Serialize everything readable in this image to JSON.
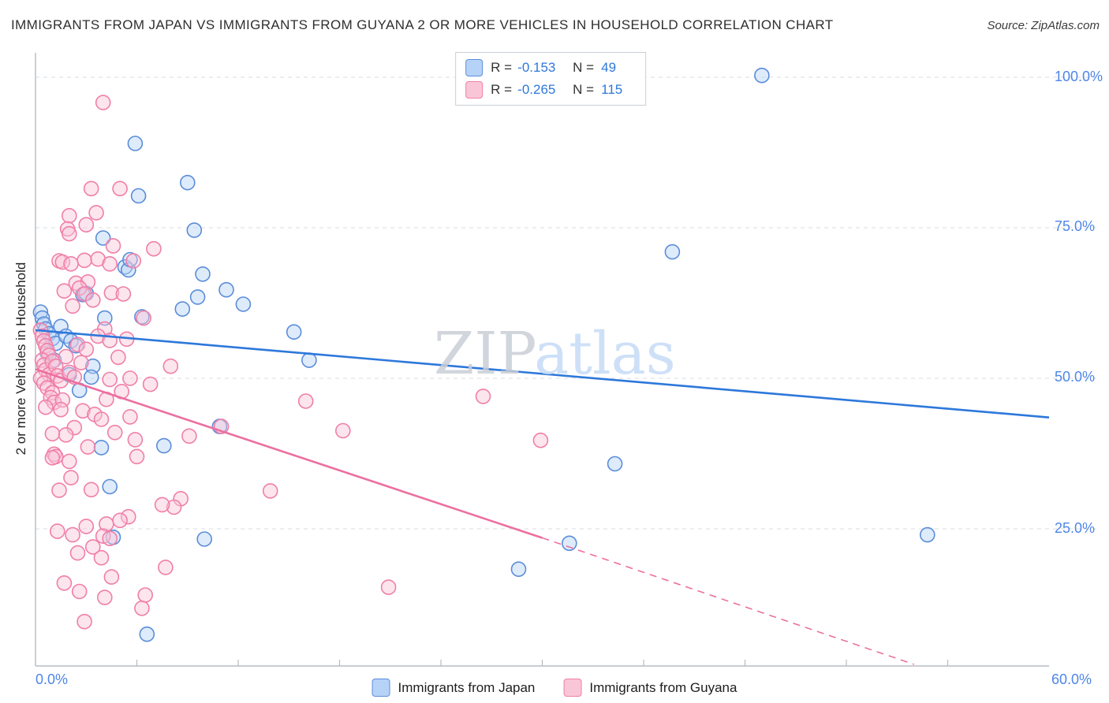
{
  "chart_data": {
    "type": "scatter",
    "title": "IMMIGRANTS FROM JAPAN VS IMMIGRANTS FROM GUYANA 2 OR MORE VEHICLES IN HOUSEHOLD CORRELATION CHART",
    "source": "Source: ZipAtlas.com",
    "ylabel": "2 or more Vehicles in Household",
    "xlim": [
      0,
      60
    ],
    "ylim": [
      0,
      105
    ],
    "grid": "horizontal-dashed",
    "legend_position": "top-center and bottom-center",
    "watermark": {
      "zip": "ZIP",
      "atlas": "atlas"
    },
    "x_ticks": [
      {
        "value": 0,
        "label": "0.0%"
      },
      {
        "value": 60,
        "label": "60.0%"
      }
    ],
    "y_ticks": [
      {
        "value": 100,
        "label": "100.0%"
      },
      {
        "value": 75,
        "label": "75.0%"
      },
      {
        "value": 50,
        "label": "50.0%"
      },
      {
        "value": 25,
        "label": "25.0%"
      }
    ],
    "colors": {
      "japan_fill": "#B6D3F7",
      "japan_stroke": "#5B8DD9",
      "guyana_fill": "#F9C6D8",
      "guyana_stroke": "#F07FA8",
      "japan_trend": "#2D78DB",
      "guyana_trend": "#EC6F9F",
      "tick_label": "#4E86E8"
    },
    "series": [
      {
        "name": "Immigrants from Japan",
        "r_label": "R =",
        "r_value": "-0.153",
        "n_label": "N =",
        "n_value": "49",
        "fill": "#B6D3F7",
        "stroke": "#5B8DD9",
        "points": [
          [
            0.3,
            61.0
          ],
          [
            0.4,
            60.0
          ],
          [
            0.5,
            59.0
          ],
          [
            0.6,
            58.2
          ],
          [
            0.8,
            57.4
          ],
          [
            1.0,
            56.6
          ],
          [
            1.2,
            55.8
          ],
          [
            0.7,
            54.2
          ],
          [
            1.5,
            58.6
          ],
          [
            1.8,
            57.0
          ],
          [
            2.1,
            56.2
          ],
          [
            2.4,
            55.4
          ],
          [
            1.1,
            53.0
          ],
          [
            2.0,
            50.6
          ],
          [
            3.4,
            52.0
          ],
          [
            3.3,
            50.2
          ],
          [
            2.6,
            48.0
          ],
          [
            2.8,
            63.9
          ],
          [
            3.0,
            64.1
          ],
          [
            4.1,
            60.0
          ],
          [
            6.3,
            60.2
          ],
          [
            8.7,
            61.5
          ],
          [
            11.3,
            64.7
          ],
          [
            12.3,
            62.3
          ],
          [
            9.6,
            63.5
          ],
          [
            9.9,
            67.3
          ],
          [
            5.3,
            68.5
          ],
          [
            5.5,
            68.0
          ],
          [
            5.6,
            69.7
          ],
          [
            4.0,
            73.3
          ],
          [
            9.4,
            74.6
          ],
          [
            6.1,
            80.3
          ],
          [
            9.0,
            82.5
          ],
          [
            5.9,
            89.0
          ],
          [
            43.0,
            100.3
          ],
          [
            37.7,
            71.0
          ],
          [
            15.3,
            57.7
          ],
          [
            16.2,
            53.0
          ],
          [
            10.9,
            42.0
          ],
          [
            7.6,
            38.8
          ],
          [
            3.9,
            38.5
          ],
          [
            34.3,
            35.8
          ],
          [
            4.4,
            32.0
          ],
          [
            4.6,
            23.6
          ],
          [
            10.0,
            23.3
          ],
          [
            31.6,
            22.6
          ],
          [
            52.8,
            24.0
          ],
          [
            28.6,
            18.3
          ],
          [
            6.6,
            7.5
          ]
        ]
      },
      {
        "name": "Immigrants from Guyana",
        "r_label": "R =",
        "r_value": "-0.265",
        "n_label": "N =",
        "n_value": "115",
        "fill": "#F9C6D8",
        "stroke": "#F07FA8",
        "points": [
          [
            0.3,
            58.0
          ],
          [
            0.4,
            57.0
          ],
          [
            0.5,
            56.2
          ],
          [
            0.6,
            55.4
          ],
          [
            0.7,
            54.6
          ],
          [
            0.8,
            53.8
          ],
          [
            0.4,
            53.0
          ],
          [
            0.5,
            52.2
          ],
          [
            0.6,
            51.4
          ],
          [
            0.8,
            50.6
          ],
          [
            1.0,
            52.8
          ],
          [
            1.2,
            52.0
          ],
          [
            0.3,
            50.0
          ],
          [
            0.5,
            49.2
          ],
          [
            0.7,
            48.4
          ],
          [
            1.0,
            47.6
          ],
          [
            1.3,
            50.4
          ],
          [
            1.5,
            49.6
          ],
          [
            0.9,
            46.8
          ],
          [
            1.1,
            46.0
          ],
          [
            0.6,
            45.2
          ],
          [
            1.6,
            46.4
          ],
          [
            2.0,
            77.0
          ],
          [
            1.9,
            74.8
          ],
          [
            2.0,
            74.0
          ],
          [
            3.0,
            75.5
          ],
          [
            3.3,
            81.5
          ],
          [
            3.6,
            77.5
          ],
          [
            2.9,
            69.6
          ],
          [
            1.4,
            69.5
          ],
          [
            1.6,
            69.3
          ],
          [
            2.4,
            65.8
          ],
          [
            3.1,
            66.0
          ],
          [
            2.6,
            65.0
          ],
          [
            1.7,
            64.5
          ],
          [
            2.9,
            64.0
          ],
          [
            3.4,
            63.0
          ],
          [
            2.2,
            62.0
          ],
          [
            1.8,
            53.6
          ],
          [
            2.0,
            51.0
          ],
          [
            2.3,
            50.2
          ],
          [
            2.7,
            52.6
          ],
          [
            2.8,
            44.6
          ],
          [
            2.3,
            41.8
          ],
          [
            2.0,
            36.2
          ],
          [
            3.1,
            38.6
          ],
          [
            2.1,
            33.5
          ],
          [
            1.4,
            31.4
          ],
          [
            3.3,
            31.5
          ],
          [
            1.0,
            40.8
          ],
          [
            1.8,
            40.6
          ],
          [
            1.1,
            37.4
          ],
          [
            1.2,
            37.0
          ],
          [
            1.0,
            36.8
          ],
          [
            4.0,
            95.8
          ],
          [
            4.6,
            72.0
          ],
          [
            3.7,
            69.8
          ],
          [
            5.8,
            69.5
          ],
          [
            4.4,
            69.0
          ],
          [
            7.0,
            71.5
          ],
          [
            4.5,
            64.2
          ],
          [
            5.2,
            64.0
          ],
          [
            6.4,
            60.0
          ],
          [
            4.1,
            58.2
          ],
          [
            3.7,
            57.0
          ],
          [
            4.4,
            56.3
          ],
          [
            5.4,
            56.5
          ],
          [
            2.5,
            55.6
          ],
          [
            3.0,
            54.8
          ],
          [
            4.9,
            53.5
          ],
          [
            5.6,
            50.0
          ],
          [
            4.4,
            49.8
          ],
          [
            6.8,
            49.0
          ],
          [
            5.1,
            47.8
          ],
          [
            4.2,
            46.5
          ],
          [
            3.5,
            44.0
          ],
          [
            5.6,
            43.6
          ],
          [
            3.9,
            43.2
          ],
          [
            4.7,
            41.0
          ],
          [
            5.9,
            39.8
          ],
          [
            6.0,
            37.0
          ],
          [
            8.0,
            52.0
          ],
          [
            9.1,
            40.4
          ],
          [
            13.9,
            31.3
          ],
          [
            8.6,
            30.0
          ],
          [
            8.2,
            28.6
          ],
          [
            7.5,
            29.0
          ],
          [
            4.2,
            25.8
          ],
          [
            1.3,
            24.6
          ],
          [
            2.2,
            24.0
          ],
          [
            4.0,
            23.8
          ],
          [
            5.5,
            27.0
          ],
          [
            3.0,
            25.4
          ],
          [
            4.4,
            23.4
          ],
          [
            3.9,
            20.2
          ],
          [
            7.7,
            18.6
          ],
          [
            4.5,
            17.0
          ],
          [
            1.7,
            16.0
          ],
          [
            2.6,
            14.6
          ],
          [
            4.1,
            13.6
          ],
          [
            6.5,
            14.0
          ],
          [
            20.9,
            15.3
          ],
          [
            2.9,
            9.6
          ],
          [
            6.3,
            11.8
          ],
          [
            2.5,
            21.0
          ],
          [
            3.4,
            22.0
          ],
          [
            5.0,
            26.4
          ],
          [
            26.5,
            47.0
          ],
          [
            16.0,
            46.2
          ],
          [
            18.2,
            41.3
          ],
          [
            29.9,
            39.7
          ],
          [
            11.0,
            42.0
          ],
          [
            5.0,
            81.5
          ],
          [
            2.1,
            69.0
          ],
          [
            1.5,
            44.8
          ]
        ]
      }
    ],
    "trend_lines": [
      {
        "series": "Immigrants from Japan",
        "color": "#2D78DB",
        "segments": [
          {
            "x1": 0,
            "y1": 58.0,
            "x2": 60,
            "y2": 43.5,
            "dashed": false
          }
        ]
      },
      {
        "series": "Immigrants from Guyana",
        "color": "#EC6F9F",
        "segments": [
          {
            "x1": 0,
            "y1": 51.5,
            "x2": 30,
            "y2": 23.5,
            "dashed": false
          },
          {
            "x1": 30,
            "y1": 23.5,
            "x2": 52,
            "y2": 2.5,
            "dashed": true
          }
        ]
      }
    ]
  }
}
